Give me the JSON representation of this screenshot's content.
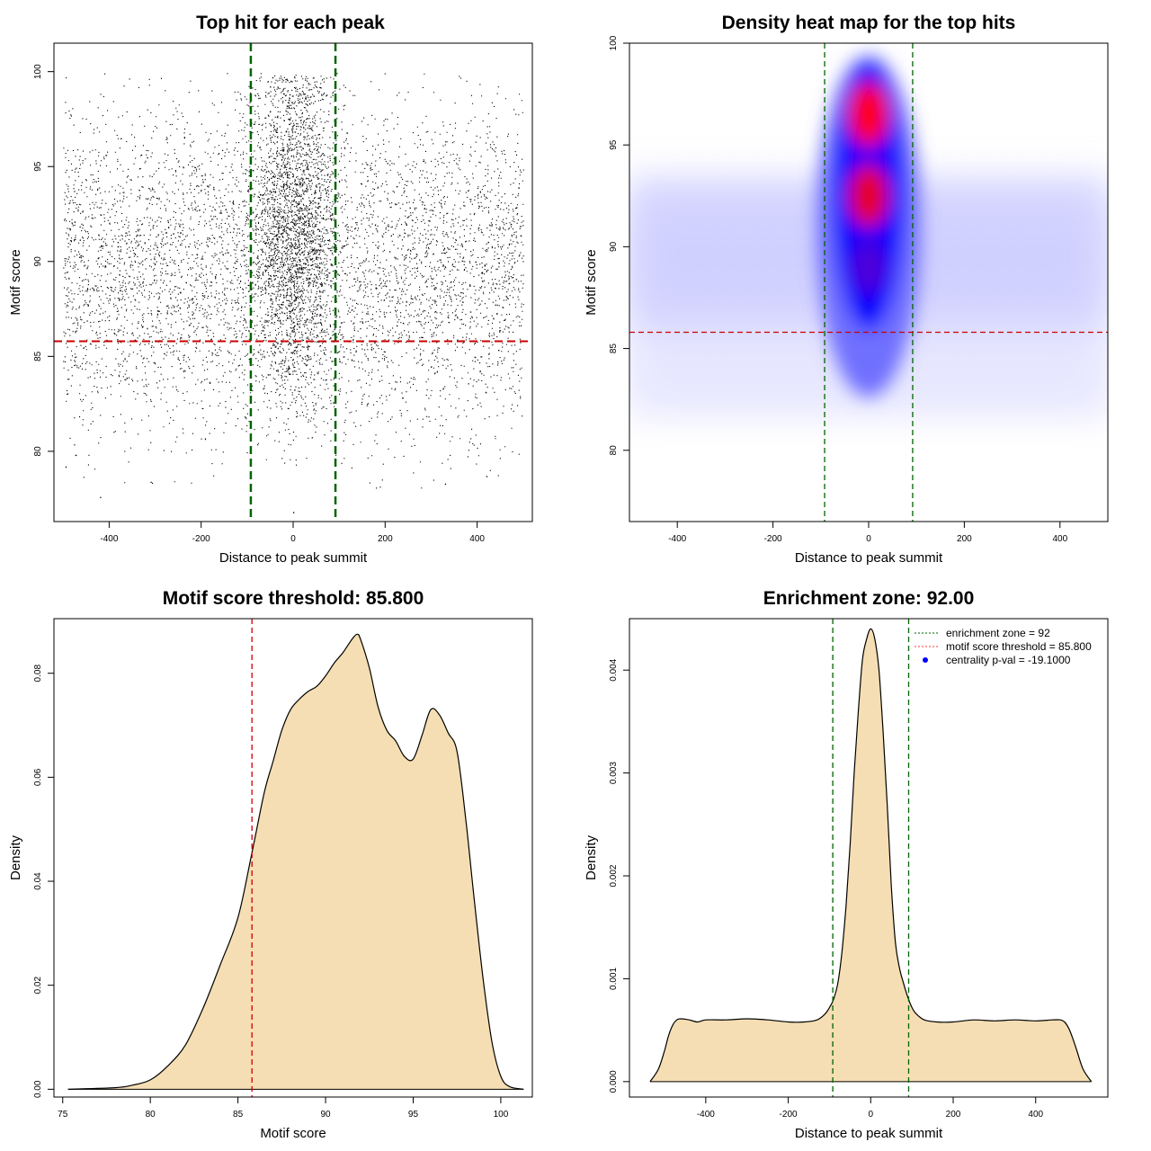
{
  "chart_data": [
    {
      "type": "scatter",
      "title": "Top hit for each peak",
      "xlabel": "Distance to peak summit",
      "ylabel": "Motif score",
      "xlim": [
        -520,
        520
      ],
      "ylim": [
        76.3,
        101.5
      ],
      "xticks": [
        -400,
        -200,
        0,
        200,
        400
      ],
      "yticks": [
        80,
        85,
        90,
        95,
        100
      ],
      "vlines": {
        "values": [
          -92,
          92
        ],
        "color": "#006400",
        "style": "dashed"
      },
      "hline": {
        "value": 85.8,
        "color": "#cc0000",
        "style": "dashed"
      },
      "points_color": "#000000",
      "distribution": {
        "x_range": [
          -500,
          500
        ],
        "y_range": [
          78,
          100
        ],
        "central_cluster": {
          "x_center": 0,
          "x_sd": 45,
          "y_center": 92,
          "y_sd": 4.5
        }
      }
    },
    {
      "type": "heatmap",
      "title": "Density heat map for the top hits",
      "xlabel": "Distance to peak summit",
      "ylabel": "Motif score",
      "xlim": [
        -500,
        500
      ],
      "ylim": [
        76.5,
        100
      ],
      "xticks": [
        -400,
        -200,
        0,
        200,
        400
      ],
      "yticks": [
        80,
        85,
        90,
        95,
        100
      ],
      "colors": [
        "#ffffff",
        "#0000ff",
        "#ff0000"
      ],
      "vlines": {
        "values": [
          -92,
          92
        ],
        "color": "#006400",
        "style": "dashed"
      },
      "hline": {
        "value": 85.8,
        "color": "#cc0000",
        "style": "dashed"
      },
      "hotspots": [
        {
          "x": 0,
          "y": 96.5,
          "intensity": 1.0
        },
        {
          "x": 0,
          "y": 92.5,
          "intensity": 0.9
        },
        {
          "x": 0,
          "y": 89,
          "intensity": 0.6
        }
      ]
    },
    {
      "type": "area",
      "title": "Motif score threshold: 85.800",
      "xlabel": "Motif score",
      "ylabel": "Density",
      "xlim": [
        74.5,
        101.8
      ],
      "ylim": [
        -0.0015,
        0.0905
      ],
      "xticks": [
        75,
        80,
        85,
        90,
        95,
        100
      ],
      "yticks": [
        0.0,
        0.02,
        0.04,
        0.06,
        0.08
      ],
      "ytick_labels": [
        "0.00",
        "0.02",
        "0.04",
        "0.06",
        "0.08"
      ],
      "fill_color": "#f5deb3",
      "vline": {
        "value": 85.8,
        "color": "#cc0000",
        "style": "dashed"
      },
      "x": [
        75.3,
        78,
        79,
        80,
        81,
        82,
        83,
        84,
        85,
        85.8,
        86.5,
        87,
        87.5,
        88,
        88.5,
        89,
        89.5,
        90,
        90.5,
        91,
        91.5,
        91.8,
        92,
        92.5,
        93,
        93.5,
        94,
        94.5,
        95,
        95.5,
        96,
        96.5,
        97,
        97.5,
        98,
        98.5,
        99,
        99.5,
        100,
        100.5,
        101.3
      ],
      "y": [
        0,
        0.0003,
        0.0008,
        0.0018,
        0.0045,
        0.0085,
        0.0155,
        0.024,
        0.033,
        0.0455,
        0.057,
        0.063,
        0.069,
        0.073,
        0.075,
        0.0765,
        0.0775,
        0.0795,
        0.082,
        0.084,
        0.0865,
        0.0875,
        0.0865,
        0.081,
        0.0735,
        0.069,
        0.067,
        0.064,
        0.0635,
        0.068,
        0.073,
        0.072,
        0.0685,
        0.065,
        0.052,
        0.036,
        0.021,
        0.009,
        0.0025,
        0.0005,
        0
      ]
    },
    {
      "type": "area",
      "title": "Enrichment zone: 92.00",
      "xlabel": "Distance to peak summit",
      "ylabel": "Density",
      "xlim": [
        -585,
        575
      ],
      "ylim": [
        -0.00015,
        0.0045
      ],
      "xticks": [
        -400,
        -200,
        0,
        200,
        400
      ],
      "yticks": [
        0.0,
        0.001,
        0.002,
        0.003,
        0.004
      ],
      "ytick_labels": [
        "0.000",
        "0.001",
        "0.002",
        "0.003",
        "0.004"
      ],
      "fill_color": "#f5deb3",
      "vlines": {
        "values": [
          -92,
          92
        ],
        "color": "#006400",
        "style": "dashed"
      },
      "x": [
        -535,
        -515,
        -500,
        -490,
        -480,
        -470,
        -460,
        -440,
        -420,
        -400,
        -350,
        -300,
        -250,
        -200,
        -160,
        -130,
        -110,
        -100,
        -90,
        -80,
        -70,
        -60,
        -50,
        -40,
        -30,
        -20,
        -10,
        0,
        10,
        20,
        30,
        40,
        50,
        60,
        70,
        80,
        90,
        100,
        110,
        130,
        160,
        200,
        250,
        300,
        350,
        400,
        440,
        460,
        470,
        480,
        490,
        500,
        515,
        535
      ],
      "y": [
        0,
        0.00012,
        0.0003,
        0.00045,
        0.00055,
        0.0006,
        0.00061,
        0.0006,
        0.00058,
        0.0006,
        0.0006,
        0.00061,
        0.0006,
        0.00058,
        0.00058,
        0.0006,
        0.00066,
        0.00072,
        0.0008,
        0.00095,
        0.00125,
        0.0017,
        0.0023,
        0.003,
        0.0036,
        0.0041,
        0.0043,
        0.0044,
        0.0043,
        0.004,
        0.0034,
        0.0027,
        0.0019,
        0.00135,
        0.0011,
        0.00095,
        0.00082,
        0.00072,
        0.00066,
        0.0006,
        0.00058,
        0.00058,
        0.0006,
        0.00059,
        0.0006,
        0.00059,
        0.0006,
        0.0006,
        0.00058,
        0.00052,
        0.00042,
        0.0003,
        0.00012,
        0
      ],
      "legend": {
        "position": "top-right",
        "entries": [
          {
            "label": "enrichment zone = 92",
            "symbol": "dotted-line",
            "color": "#006400"
          },
          {
            "label": "motif score threshold = 85.800",
            "symbol": "dotted-line",
            "color": "#ff3333"
          },
          {
            "label": "centrality p-val = -19.1000",
            "symbol": "point",
            "color": "#0000ff"
          }
        ]
      }
    }
  ]
}
